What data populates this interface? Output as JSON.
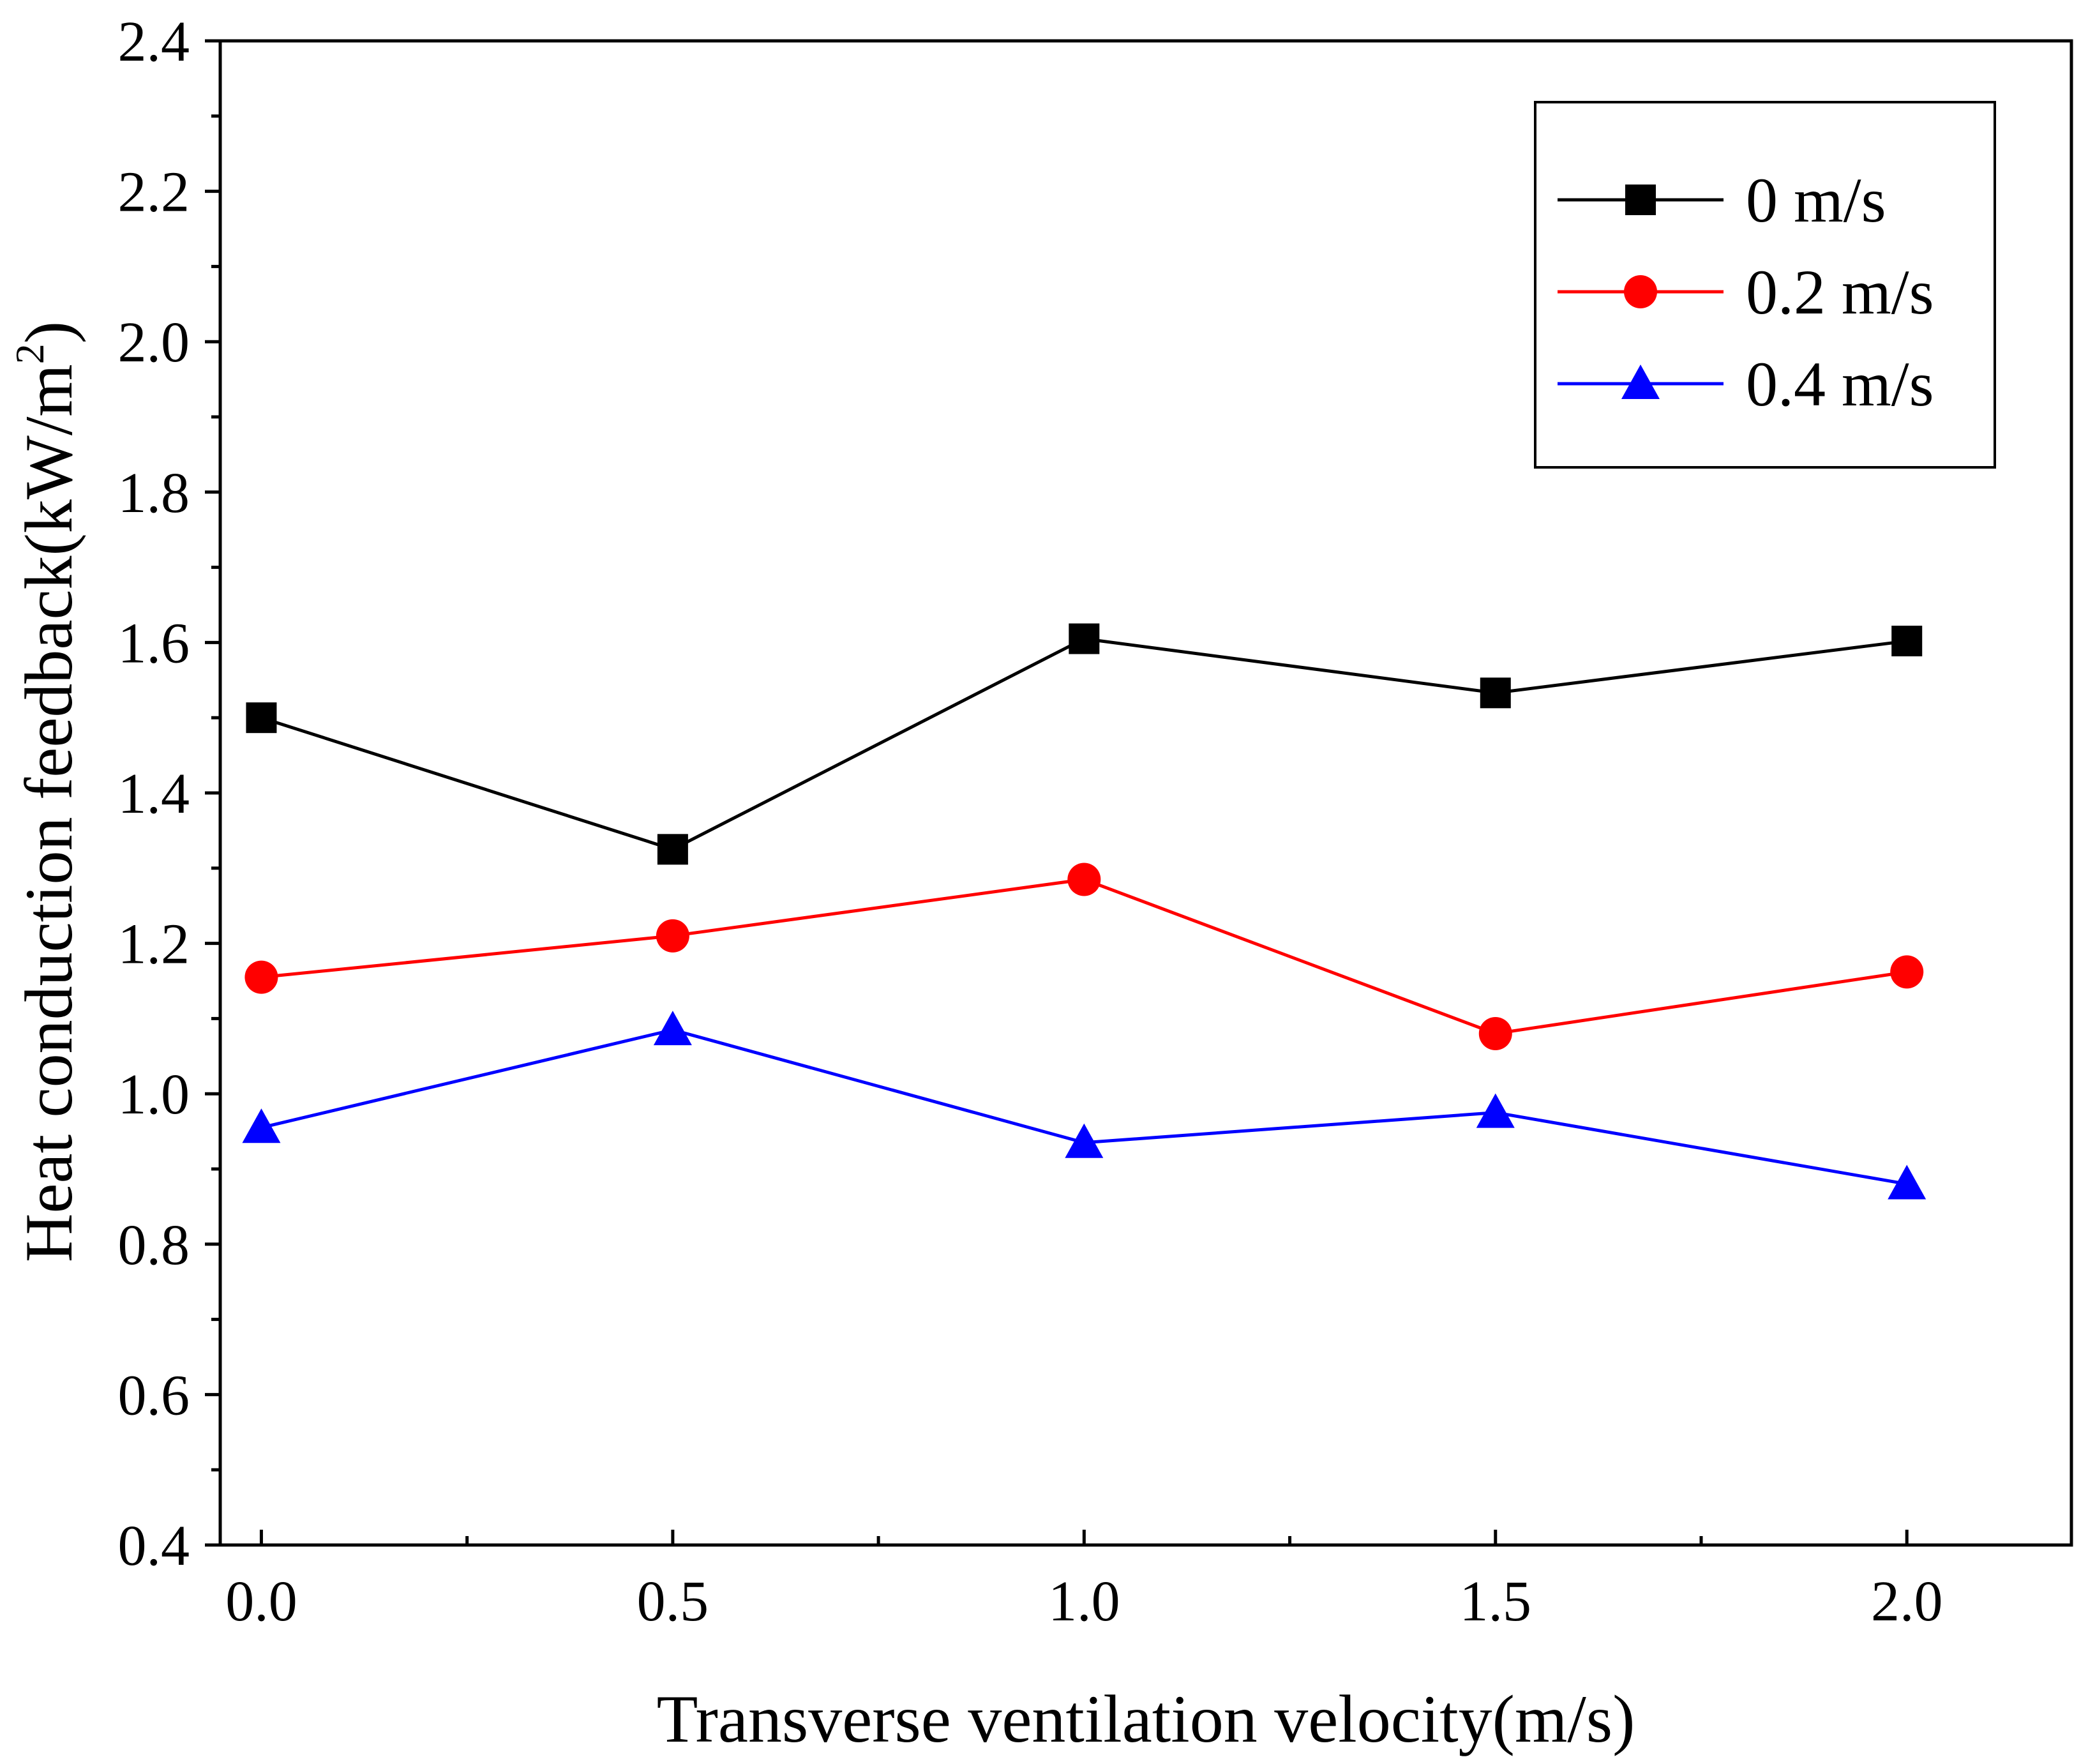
{
  "chart_data": {
    "type": "line",
    "title": "",
    "xlabel": "Transverse ventilation velocity(m/s)",
    "ylabel": {
      "main": "Heat conduction feedback(kW/m",
      "sup": "2",
      "close": ")"
    },
    "xlim": [
      -0.05,
      2.2
    ],
    "ylim": [
      0.4,
      2.4
    ],
    "xticks": [
      {
        "value": 0.0,
        "label": "0.0"
      },
      {
        "value": 0.5,
        "label": "0.5"
      },
      {
        "value": 1.0,
        "label": "1.0"
      },
      {
        "value": 1.5,
        "label": "1.5"
      },
      {
        "value": 2.0,
        "label": "2.0"
      }
    ],
    "x_minor_ticks": [
      0.25,
      0.75,
      1.25,
      1.75
    ],
    "yticks": [
      {
        "value": 0.4,
        "label": "0.4"
      },
      {
        "value": 0.6,
        "label": "0.6"
      },
      {
        "value": 0.8,
        "label": "0.8"
      },
      {
        "value": 1.0,
        "label": "1.0"
      },
      {
        "value": 1.2,
        "label": "1.2"
      },
      {
        "value": 1.4,
        "label": "1.4"
      },
      {
        "value": 1.6,
        "label": "1.6"
      },
      {
        "value": 1.8,
        "label": "1.8"
      },
      {
        "value": 2.0,
        "label": "2.0"
      },
      {
        "value": 2.2,
        "label": "2.2"
      },
      {
        "value": 2.4,
        "label": "2.4"
      }
    ],
    "y_minor_ticks": [
      0.5,
      0.7,
      0.9,
      1.1,
      1.3,
      1.5,
      1.7,
      1.9,
      2.1,
      2.3
    ],
    "grid": false,
    "legend_position": "top-right",
    "x": [
      0.0,
      0.5,
      1.0,
      1.5,
      2.0
    ],
    "series": [
      {
        "name": "0 m/s",
        "color": "#000000",
        "marker": "square",
        "values": [
          1.5,
          1.325,
          1.605,
          1.533,
          1.602
        ]
      },
      {
        "name": "0.2 m/s",
        "color": "#ff0000",
        "marker": "circle",
        "values": [
          1.155,
          1.21,
          1.285,
          1.08,
          1.162
        ]
      },
      {
        "name": "0.4 m/s",
        "color": "#0000ff",
        "marker": "triangle",
        "values": [
          0.955,
          1.085,
          0.935,
          0.975,
          0.88
        ]
      }
    ]
  }
}
